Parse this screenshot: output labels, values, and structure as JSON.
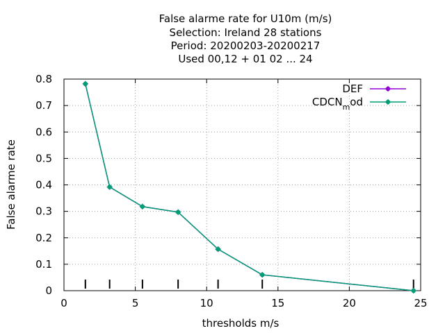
{
  "chart_data": {
    "type": "line",
    "title_lines": [
      "False alarme rate  for U10m (m/s)",
      "Selection: Ireland     28 stations",
      "Period: 20200203-20200217",
      "Used  00,12  + 01 02 ... 24"
    ],
    "xlabel": "thresholds m/s",
    "ylabel": "False alarme rate",
    "xlim": [
      0,
      25
    ],
    "ylim": [
      0,
      0.8
    ],
    "x_ticks": [
      "0",
      "5",
      "10",
      "15",
      "20",
      "25"
    ],
    "y_ticks": [
      "0",
      "0.1",
      "0.2",
      "0.3",
      "0.4",
      "0.5",
      "0.6",
      "0.7",
      "0.8"
    ],
    "grid": true,
    "legend_position": "top-right",
    "threshold_marks": [
      1.5,
      3.2,
      5.5,
      8.0,
      10.8,
      13.9,
      24.5
    ],
    "series": [
      {
        "name": "DEF",
        "color": "#9400d3",
        "x": [
          1.5,
          3.2,
          5.5,
          8.0,
          10.8,
          13.9,
          24.5
        ],
        "y": [
          0.782,
          0.392,
          0.318,
          0.297,
          0.157,
          0.06,
          0.0
        ]
      },
      {
        "name_main": "CDCN",
        "name_sub": "m",
        "name_rest": "od",
        "color": "#009e73",
        "x": [
          1.5,
          3.2,
          5.5,
          8.0,
          10.8,
          13.9,
          24.5
        ],
        "y": [
          0.782,
          0.392,
          0.318,
          0.297,
          0.157,
          0.06,
          0.0
        ]
      }
    ]
  }
}
